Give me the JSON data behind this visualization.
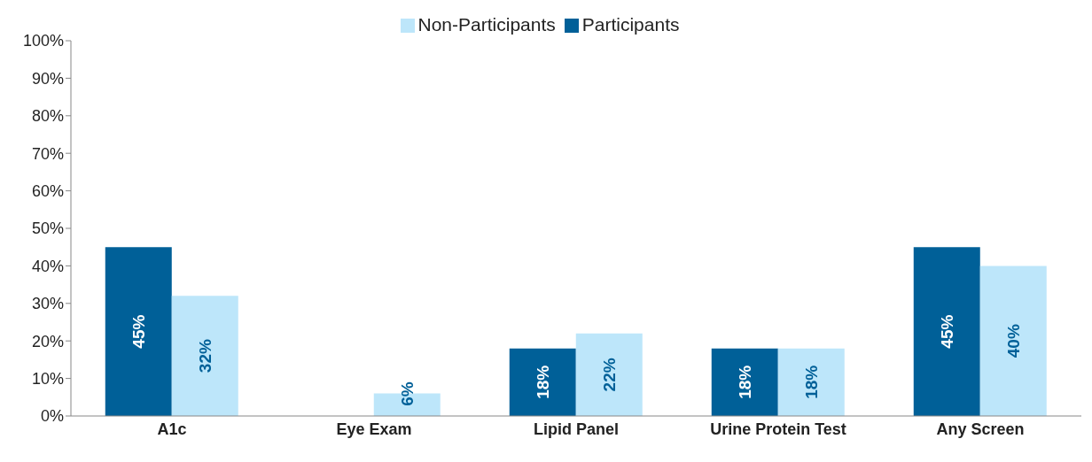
{
  "chart_data": {
    "type": "bar",
    "categories": [
      "A1c",
      "Eye Exam",
      "Lipid Panel",
      "Urine Protein Test",
      "Any Screen"
    ],
    "series": [
      {
        "name": "Participants",
        "color": "#006098",
        "values": [
          45,
          null,
          18,
          18,
          45
        ],
        "value_labels": [
          "45%",
          null,
          "18%",
          "18%",
          "45%"
        ]
      },
      {
        "name": "Non-Participants",
        "color": "#bde6fa",
        "values": [
          32,
          6,
          22,
          18,
          40
        ],
        "value_labels": [
          "32%",
          "6%",
          "22%",
          "18%",
          "40%"
        ]
      }
    ],
    "ylim": [
      0,
      100
    ],
    "yticks": [
      {
        "value": 0,
        "label": "0%"
      },
      {
        "value": 10,
        "label": "10%"
      },
      {
        "value": 20,
        "label": "20%"
      },
      {
        "value": 30,
        "label": "30%"
      },
      {
        "value": 40,
        "label": "40%"
      },
      {
        "value": 50,
        "label": "50%"
      },
      {
        "value": 60,
        "label": "60%"
      },
      {
        "value": 70,
        "label": "70%"
      },
      {
        "value": 80,
        "label": "80%"
      },
      {
        "value": 90,
        "label": "90%"
      },
      {
        "value": 100,
        "label": "100%"
      }
    ],
    "grid": false,
    "legend": "top"
  }
}
